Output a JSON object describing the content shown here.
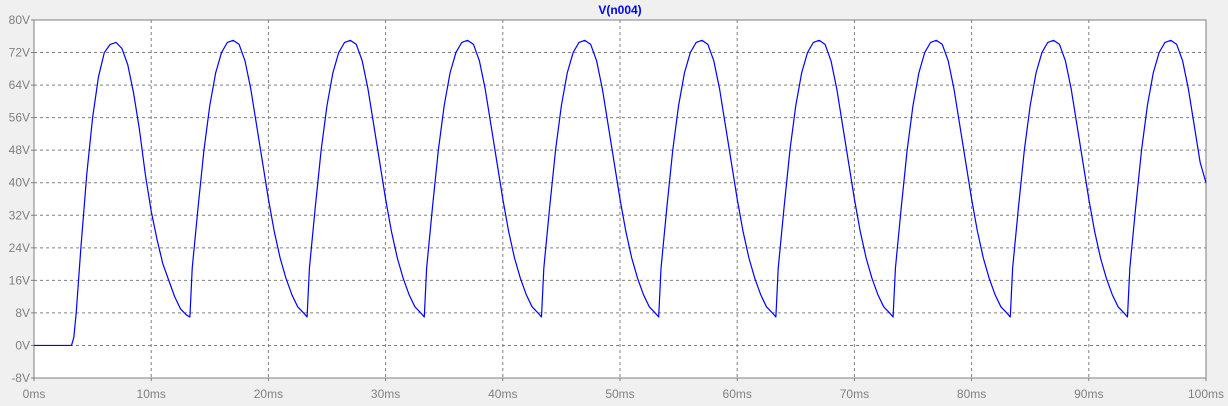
{
  "colors": {
    "background": "#f0f0f0",
    "plot_area": "#ffffff",
    "grid": "#808080",
    "axis_text": "#808080",
    "trace": "#0000ff"
  },
  "chart_data": {
    "type": "line",
    "title": "V(n004)",
    "xlabel": "",
    "ylabel": "",
    "x_unit": "ms",
    "y_unit": "V",
    "xlim": [
      0,
      100
    ],
    "ylim": [
      -8,
      80
    ],
    "x_ticks": [
      0,
      10,
      20,
      30,
      40,
      50,
      60,
      70,
      80,
      90,
      100
    ],
    "y_ticks": [
      -8,
      0,
      8,
      16,
      24,
      32,
      40,
      48,
      56,
      64,
      72,
      80
    ],
    "x_tick_labels": [
      "0ms",
      "10ms",
      "20ms",
      "30ms",
      "40ms",
      "50ms",
      "60ms",
      "70ms",
      "80ms",
      "90ms",
      "100ms"
    ],
    "y_tick_labels": [
      "-8V",
      "0V",
      "8V",
      "16V",
      "24V",
      "32V",
      "40V",
      "48V",
      "56V",
      "64V",
      "72V",
      "80V"
    ],
    "grid": true,
    "grid_style": "dashed",
    "series": [
      {
        "name": "V(n004)",
        "color": "#0000ff",
        "x": [
          0,
          3.2,
          3.4,
          3.6,
          4.0,
          4.5,
          5.0,
          5.5,
          6.0,
          6.5,
          7.0,
          7.5,
          8.0,
          8.5,
          9.0,
          9.5,
          10.0,
          10.5,
          11.0,
          11.5,
          12.0,
          12.5,
          13.0,
          13.3,
          13.5,
          14.0,
          14.5,
          15.0,
          15.5,
          16.0,
          16.5,
          17.0,
          17.5,
          18.0,
          18.5,
          19.0,
          19.5,
          20.0,
          20.5,
          21.0,
          21.5,
          22.0,
          22.5,
          23.0,
          23.3,
          23.5,
          24.0,
          24.5,
          25.0,
          25.5,
          26.0,
          26.5,
          27.0,
          27.5,
          28.0,
          28.5,
          29.0,
          29.5,
          30.0,
          30.5,
          31.0,
          31.5,
          32.0,
          32.5,
          33.0,
          33.3,
          33.5,
          34.0,
          34.5,
          35.0,
          35.5,
          36.0,
          36.5,
          37.0,
          37.5,
          38.0,
          38.5,
          39.0,
          39.5,
          40.0,
          40.5,
          41.0,
          41.5,
          42.0,
          42.5,
          43.0,
          43.3,
          43.5,
          44.0,
          44.5,
          45.0,
          45.5,
          46.0,
          46.5,
          47.0,
          47.5,
          48.0,
          48.5,
          49.0,
          49.5,
          50.0,
          50.5,
          51.0,
          51.5,
          52.0,
          52.5,
          53.0,
          53.3,
          53.5,
          54.0,
          54.5,
          55.0,
          55.5,
          56.0,
          56.5,
          57.0,
          57.5,
          58.0,
          58.5,
          59.0,
          59.5,
          60.0,
          60.5,
          61.0,
          61.5,
          62.0,
          62.5,
          63.0,
          63.3,
          63.5,
          64.0,
          64.5,
          65.0,
          65.5,
          66.0,
          66.5,
          67.0,
          67.5,
          68.0,
          68.5,
          69.0,
          69.5,
          70.0,
          70.5,
          71.0,
          71.5,
          72.0,
          72.5,
          73.0,
          73.3,
          73.5,
          74.0,
          74.5,
          75.0,
          75.5,
          76.0,
          76.5,
          77.0,
          77.5,
          78.0,
          78.5,
          79.0,
          79.5,
          80.0,
          80.5,
          81.0,
          81.5,
          82.0,
          82.5,
          83.0,
          83.3,
          83.5,
          84.0,
          84.5,
          85.0,
          85.5,
          86.0,
          86.5,
          87.0,
          87.5,
          88.0,
          88.5,
          89.0,
          89.5,
          90.0,
          90.5,
          91.0,
          91.5,
          92.0,
          92.5,
          93.0,
          93.3,
          93.5,
          94.0,
          94.5,
          95.0,
          95.5,
          96.0,
          96.5,
          97.0,
          97.5,
          98.0,
          98.5,
          99.0,
          99.5,
          100.0
        ],
        "y": [
          0,
          0,
          2,
          8,
          24,
          42,
          56,
          66,
          72,
          74,
          74.5,
          73,
          69,
          62,
          53,
          42,
          33,
          26,
          20,
          16,
          12,
          9,
          7.5,
          7,
          19,
          34,
          48,
          59,
          67,
          72,
          74.5,
          75,
          74,
          70,
          63,
          54,
          45,
          36,
          28,
          21.5,
          16.5,
          12.5,
          9.5,
          8,
          7,
          19,
          34,
          48,
          59,
          67,
          72,
          74.5,
          75,
          74,
          70,
          63,
          54,
          45,
          36,
          28,
          21.5,
          16.5,
          12.5,
          9.5,
          8,
          7,
          19,
          34,
          48,
          59,
          67,
          72,
          74.5,
          75,
          74,
          70,
          63,
          54,
          45,
          36,
          28,
          21.5,
          16.5,
          12.5,
          9.5,
          8,
          7,
          19,
          34,
          48,
          59,
          67,
          72,
          74.5,
          75,
          74,
          70,
          63,
          54,
          45,
          36,
          28,
          21.5,
          16.5,
          12.5,
          9.5,
          8,
          7,
          19,
          34,
          48,
          59,
          67,
          72,
          74.5,
          75,
          74,
          70,
          63,
          54,
          45,
          36,
          28,
          21.5,
          16.5,
          12.5,
          9.5,
          8,
          7,
          19,
          34,
          48,
          59,
          67,
          72,
          74.5,
          75,
          74,
          70,
          63,
          54,
          45,
          36,
          28,
          21.5,
          16.5,
          12.5,
          9.5,
          8,
          7,
          19,
          34,
          48,
          59,
          67,
          72,
          74.5,
          75,
          74,
          70,
          63,
          54,
          45,
          36,
          28,
          21.5,
          16.5,
          12.5,
          9.5,
          8,
          7,
          19,
          34,
          48,
          59,
          67,
          72,
          74.5,
          75,
          74,
          70,
          63,
          54,
          45,
          36,
          28,
          21.5,
          16.5,
          12.5,
          9.5,
          8,
          7,
          19,
          34,
          48,
          59,
          67,
          72,
          74.5,
          75,
          74,
          70,
          63,
          54,
          45,
          40
        ]
      }
    ]
  }
}
